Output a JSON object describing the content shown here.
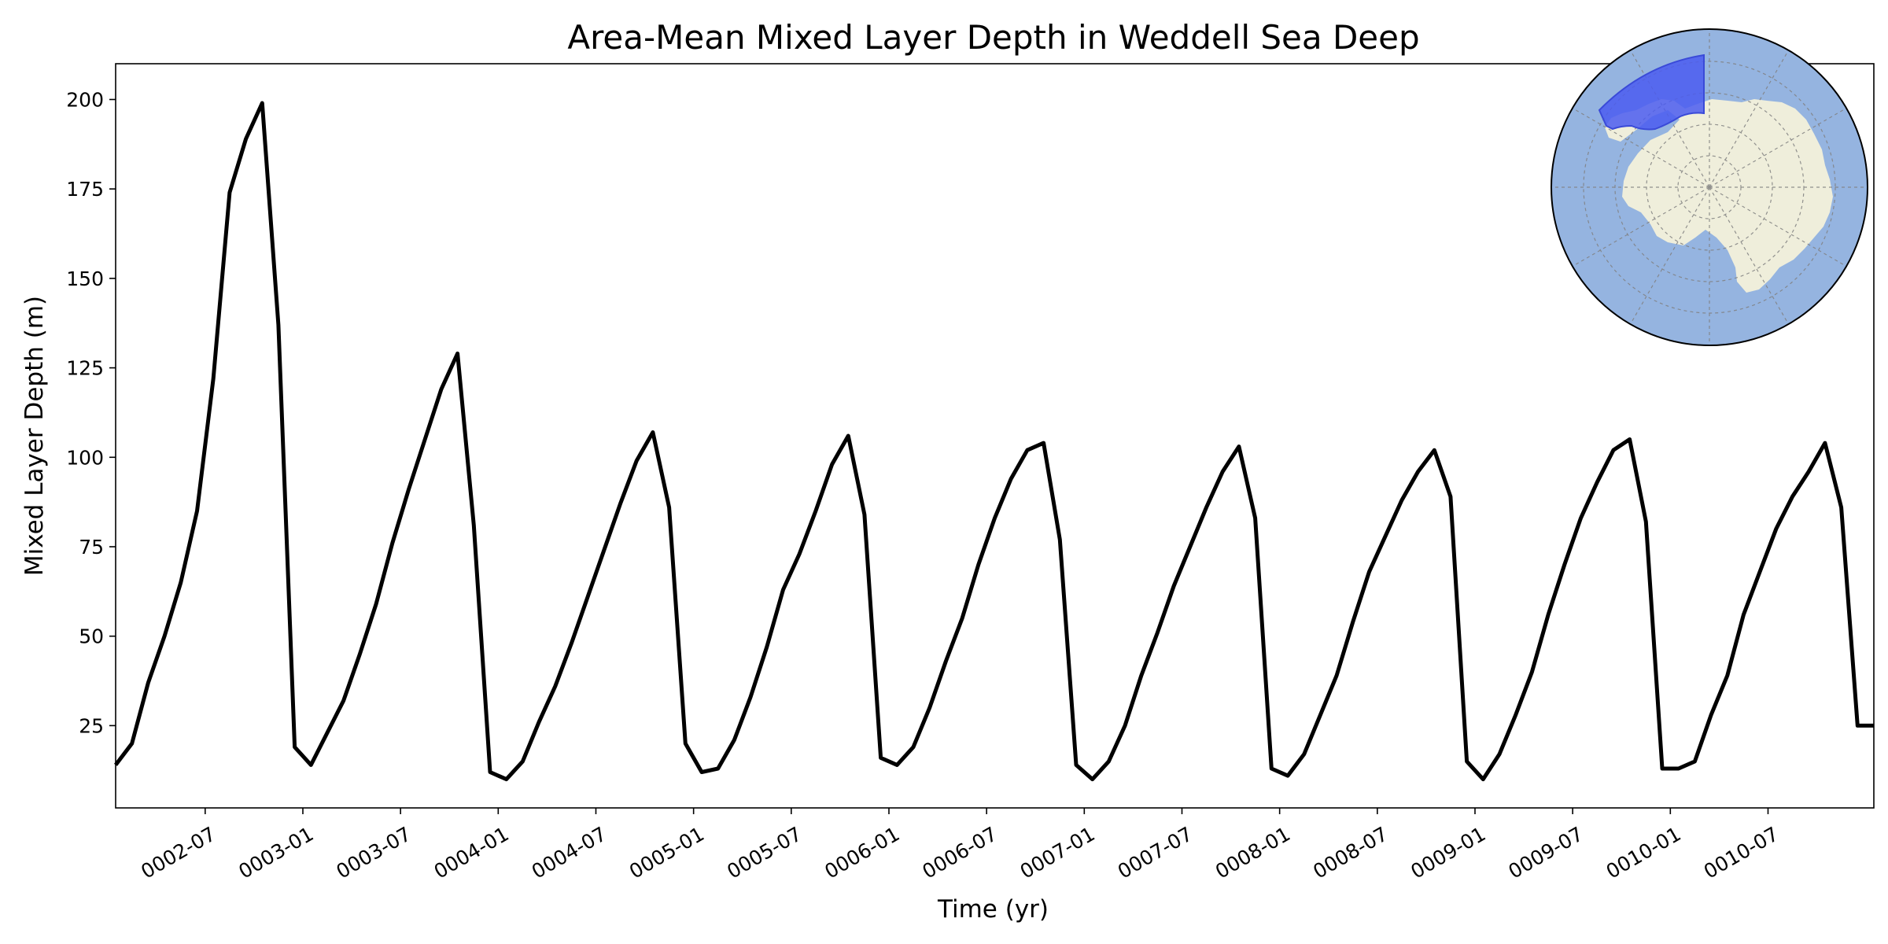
{
  "chart_data": {
    "type": "line",
    "title": "Area-Mean Mixed Layer Depth in Weddell Sea Deep",
    "xlabel": "Time (yr)",
    "ylabel": "Mixed Layer Depth (m)",
    "xlim": [
      "0002-01-16",
      "0011-01-16"
    ],
    "ylim": [
      2,
      210
    ],
    "grid": false,
    "x_ticks": [
      "0002-07",
      "0003-01",
      "0003-07",
      "0004-01",
      "0004-07",
      "0005-01",
      "0005-07",
      "0006-01",
      "0006-07",
      "0007-01",
      "0007-07",
      "0008-01",
      "0008-07",
      "0009-01",
      "0009-07",
      "0010-01",
      "0010-07"
    ],
    "y_ticks": [
      25,
      50,
      75,
      100,
      125,
      150,
      175,
      200
    ],
    "line_color": "#000000",
    "series": [
      {
        "x": [
          "0002-01",
          "0002-02",
          "0002-03",
          "0002-04",
          "0002-05",
          "0002-06",
          "0002-07",
          "0002-08",
          "0002-09",
          "0002-10",
          "0002-11",
          "0002-12",
          "0003-01",
          "0003-02",
          "0003-03",
          "0003-04",
          "0003-05",
          "0003-06",
          "0003-07",
          "0003-08",
          "0003-09",
          "0003-10",
          "0003-11",
          "0003-12",
          "0004-01",
          "0004-02",
          "0004-03",
          "0004-04",
          "0004-05",
          "0004-06",
          "0004-07",
          "0004-08",
          "0004-09",
          "0004-10",
          "0004-11",
          "0004-12",
          "0005-01",
          "0005-02",
          "0005-03",
          "0005-04",
          "0005-05",
          "0005-06",
          "0005-07",
          "0005-08",
          "0005-09",
          "0005-10",
          "0005-11",
          "0005-12",
          "0006-01",
          "0006-02",
          "0006-03",
          "0006-04",
          "0006-05",
          "0006-06",
          "0006-07",
          "0006-08",
          "0006-09",
          "0006-10",
          "0006-11",
          "0006-12",
          "0007-01",
          "0007-02",
          "0007-03",
          "0007-04",
          "0007-05",
          "0007-06",
          "0007-07",
          "0007-08",
          "0007-09",
          "0007-10",
          "0007-11",
          "0007-12",
          "0008-01",
          "0008-02",
          "0008-03",
          "0008-04",
          "0008-05",
          "0008-06",
          "0008-07",
          "0008-08",
          "0008-09",
          "0008-10",
          "0008-11",
          "0008-12",
          "0009-01",
          "0009-02",
          "0009-03",
          "0009-04",
          "0009-05",
          "0009-06",
          "0009-07",
          "0009-08",
          "0009-09",
          "0009-10",
          "0009-11",
          "0009-12",
          "0010-01",
          "0010-02",
          "0010-03",
          "0010-04",
          "0010-05",
          "0010-06",
          "0010-07",
          "0010-08",
          "0010-09",
          "0010-10",
          "0010-11",
          "0010-12",
          "0011-01"
        ],
        "y": [
          14,
          20,
          37,
          50,
          65,
          85,
          122,
          174,
          189,
          199,
          137,
          19,
          14,
          23,
          32,
          45,
          59,
          76,
          91,
          105,
          119,
          129,
          81,
          12,
          10,
          15,
          26,
          36,
          48,
          61,
          74,
          87,
          99,
          107,
          86,
          20,
          12,
          13,
          21,
          33,
          47,
          63,
          73,
          85,
          98,
          106,
          84,
          16,
          14,
          19,
          30,
          43,
          55,
          70,
          83,
          94,
          102,
          104,
          77,
          14,
          10,
          15,
          25,
          39,
          51,
          64,
          75,
          86,
          96,
          103,
          83,
          13,
          11,
          17,
          28,
          39,
          54,
          68,
          78,
          88,
          96,
          102,
          89,
          15,
          10,
          17,
          28,
          40,
          56,
          70,
          83,
          93,
          102,
          105,
          82,
          13,
          13,
          15,
          28,
          39,
          56,
          68,
          80,
          89,
          96,
          104,
          86,
          25,
          25
        ]
      }
    ]
  },
  "inset_map": {
    "ocean_color": "#95b4e0",
    "land_color": "#efeedb",
    "region_color": "#4b5cf0"
  }
}
